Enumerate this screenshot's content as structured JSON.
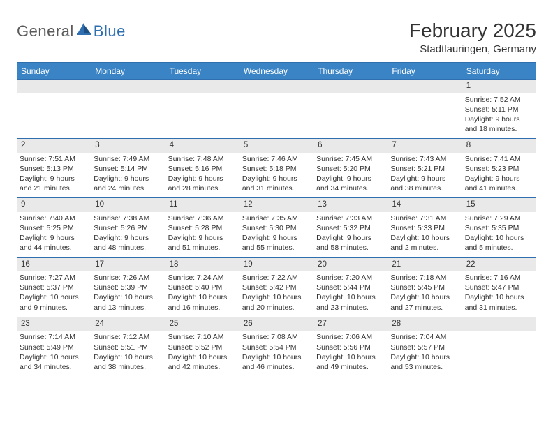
{
  "logo": {
    "text1": "General",
    "text2": "Blue"
  },
  "title": "February 2025",
  "subtitle": "Stadtlauringen, Germany",
  "colors": {
    "header_bg": "#3a84c5",
    "border": "#2f6fb0",
    "daynum_bg": "#e9e9e9",
    "text": "#333333",
    "logo_gray": "#5a5a5a",
    "logo_blue": "#2f6fb0"
  },
  "day_headers": [
    "Sunday",
    "Monday",
    "Tuesday",
    "Wednesday",
    "Thursday",
    "Friday",
    "Saturday"
  ],
  "weeks": [
    [
      null,
      null,
      null,
      null,
      null,
      null,
      {
        "n": "1",
        "sunrise": "7:52 AM",
        "sunset": "5:11 PM",
        "day_h": "9",
        "day_m": "18"
      }
    ],
    [
      {
        "n": "2",
        "sunrise": "7:51 AM",
        "sunset": "5:13 PM",
        "day_h": "9",
        "day_m": "21"
      },
      {
        "n": "3",
        "sunrise": "7:49 AM",
        "sunset": "5:14 PM",
        "day_h": "9",
        "day_m": "24"
      },
      {
        "n": "4",
        "sunrise": "7:48 AM",
        "sunset": "5:16 PM",
        "day_h": "9",
        "day_m": "28"
      },
      {
        "n": "5",
        "sunrise": "7:46 AM",
        "sunset": "5:18 PM",
        "day_h": "9",
        "day_m": "31"
      },
      {
        "n": "6",
        "sunrise": "7:45 AM",
        "sunset": "5:20 PM",
        "day_h": "9",
        "day_m": "34"
      },
      {
        "n": "7",
        "sunrise": "7:43 AM",
        "sunset": "5:21 PM",
        "day_h": "9",
        "day_m": "38"
      },
      {
        "n": "8",
        "sunrise": "7:41 AM",
        "sunset": "5:23 PM",
        "day_h": "9",
        "day_m": "41"
      }
    ],
    [
      {
        "n": "9",
        "sunrise": "7:40 AM",
        "sunset": "5:25 PM",
        "day_h": "9",
        "day_m": "44"
      },
      {
        "n": "10",
        "sunrise": "7:38 AM",
        "sunset": "5:26 PM",
        "day_h": "9",
        "day_m": "48"
      },
      {
        "n": "11",
        "sunrise": "7:36 AM",
        "sunset": "5:28 PM",
        "day_h": "9",
        "day_m": "51"
      },
      {
        "n": "12",
        "sunrise": "7:35 AM",
        "sunset": "5:30 PM",
        "day_h": "9",
        "day_m": "55"
      },
      {
        "n": "13",
        "sunrise": "7:33 AM",
        "sunset": "5:32 PM",
        "day_h": "9",
        "day_m": "58"
      },
      {
        "n": "14",
        "sunrise": "7:31 AM",
        "sunset": "5:33 PM",
        "day_h": "10",
        "day_m": "2"
      },
      {
        "n": "15",
        "sunrise": "7:29 AM",
        "sunset": "5:35 PM",
        "day_h": "10",
        "day_m": "5"
      }
    ],
    [
      {
        "n": "16",
        "sunrise": "7:27 AM",
        "sunset": "5:37 PM",
        "day_h": "10",
        "day_m": "9"
      },
      {
        "n": "17",
        "sunrise": "7:26 AM",
        "sunset": "5:39 PM",
        "day_h": "10",
        "day_m": "13"
      },
      {
        "n": "18",
        "sunrise": "7:24 AM",
        "sunset": "5:40 PM",
        "day_h": "10",
        "day_m": "16"
      },
      {
        "n": "19",
        "sunrise": "7:22 AM",
        "sunset": "5:42 PM",
        "day_h": "10",
        "day_m": "20"
      },
      {
        "n": "20",
        "sunrise": "7:20 AM",
        "sunset": "5:44 PM",
        "day_h": "10",
        "day_m": "23"
      },
      {
        "n": "21",
        "sunrise": "7:18 AM",
        "sunset": "5:45 PM",
        "day_h": "10",
        "day_m": "27"
      },
      {
        "n": "22",
        "sunrise": "7:16 AM",
        "sunset": "5:47 PM",
        "day_h": "10",
        "day_m": "31"
      }
    ],
    [
      {
        "n": "23",
        "sunrise": "7:14 AM",
        "sunset": "5:49 PM",
        "day_h": "10",
        "day_m": "34"
      },
      {
        "n": "24",
        "sunrise": "7:12 AM",
        "sunset": "5:51 PM",
        "day_h": "10",
        "day_m": "38"
      },
      {
        "n": "25",
        "sunrise": "7:10 AM",
        "sunset": "5:52 PM",
        "day_h": "10",
        "day_m": "42"
      },
      {
        "n": "26",
        "sunrise": "7:08 AM",
        "sunset": "5:54 PM",
        "day_h": "10",
        "day_m": "46"
      },
      {
        "n": "27",
        "sunrise": "7:06 AM",
        "sunset": "5:56 PM",
        "day_h": "10",
        "day_m": "49"
      },
      {
        "n": "28",
        "sunrise": "7:04 AM",
        "sunset": "5:57 PM",
        "day_h": "10",
        "day_m": "53"
      },
      null
    ]
  ],
  "labels": {
    "sunrise": "Sunrise:",
    "sunset": "Sunset:",
    "daylight1": "Daylight:",
    "hours": "hours",
    "and": "and",
    "minutes": "minutes."
  }
}
